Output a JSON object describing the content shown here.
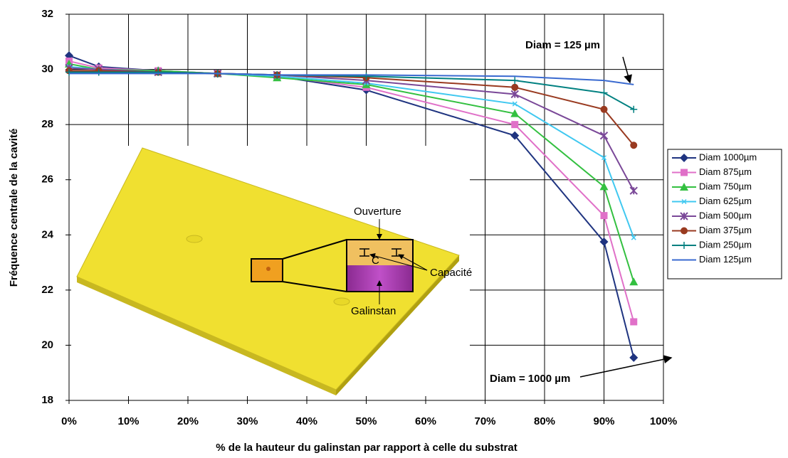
{
  "chart_data": {
    "type": "line",
    "x_label": "% de la hauteur du galinstan par rapport à celle du substrat",
    "y_label": "Fréquence centrale de la cavité",
    "x": [
      0,
      5,
      15,
      25,
      35,
      50,
      75,
      90,
      95
    ],
    "xlim": [
      0,
      100
    ],
    "xticks": [
      {
        "value": 0,
        "label": "0%"
      },
      {
        "value": 10,
        "label": "10%"
      },
      {
        "value": 20,
        "label": "20%"
      },
      {
        "value": 30,
        "label": "30%"
      },
      {
        "value": 40,
        "label": "40%"
      },
      {
        "value": 50,
        "label": "50%"
      },
      {
        "value": 60,
        "label": "60%"
      },
      {
        "value": 70,
        "label": "70%"
      },
      {
        "value": 80,
        "label": "80%"
      },
      {
        "value": 90,
        "label": "90%"
      },
      {
        "value": 100,
        "label": "100%"
      }
    ],
    "ylim": [
      18,
      32
    ],
    "yticks": [
      18,
      20,
      22,
      24,
      26,
      28,
      30,
      32
    ],
    "grid": true,
    "legend": "right",
    "series": [
      {
        "name": "Diam 1000µm",
        "color": "#1f3480",
        "marker": "diamond",
        "values": [
          30.5,
          30.1,
          29.95,
          29.85,
          29.75,
          29.25,
          27.6,
          23.75,
          19.55
        ]
      },
      {
        "name": "Diam 875µm",
        "color": "#e070c8",
        "marker": "square",
        "values": [
          30.3,
          30.05,
          29.95,
          29.85,
          29.75,
          29.35,
          28.0,
          24.7,
          20.85
        ]
      },
      {
        "name": "Diam 750µm",
        "color": "#33c040",
        "marker": "triangle",
        "values": [
          30.2,
          30.0,
          29.95,
          29.85,
          29.7,
          29.45,
          28.4,
          25.75,
          22.3
        ]
      },
      {
        "name": "Diam 625µm",
        "color": "#40c8f0",
        "marker": "x",
        "values": [
          30.1,
          30.0,
          29.9,
          29.85,
          29.75,
          29.5,
          28.75,
          26.8,
          23.9
        ]
      },
      {
        "name": "Diam 500µm",
        "color": "#7a4898",
        "marker": "star",
        "values": [
          30.05,
          30.0,
          29.9,
          29.85,
          29.8,
          29.6,
          29.1,
          27.6,
          25.6
        ]
      },
      {
        "name": "Diam 375µm",
        "color": "#993a20",
        "marker": "circle",
        "values": [
          29.95,
          29.95,
          29.9,
          29.85,
          29.8,
          29.7,
          29.35,
          28.55,
          27.25
        ]
      },
      {
        "name": "Diam 250µm",
        "color": "#008080",
        "marker": "plus",
        "values": [
          29.9,
          29.9,
          29.9,
          29.85,
          29.8,
          29.75,
          29.6,
          29.15,
          28.55
        ]
      },
      {
        "name": "Diam 125µm",
        "color": "#3a6ad0",
        "marker": "none",
        "values": [
          29.85,
          29.85,
          29.85,
          29.85,
          29.8,
          29.8,
          29.75,
          29.6,
          29.45
        ]
      }
    ],
    "annotations": [
      "Diam = 125 µm",
      "Diam = 1000 µm",
      "Ouverture",
      "C",
      "Capacité",
      "Galinstan"
    ]
  }
}
